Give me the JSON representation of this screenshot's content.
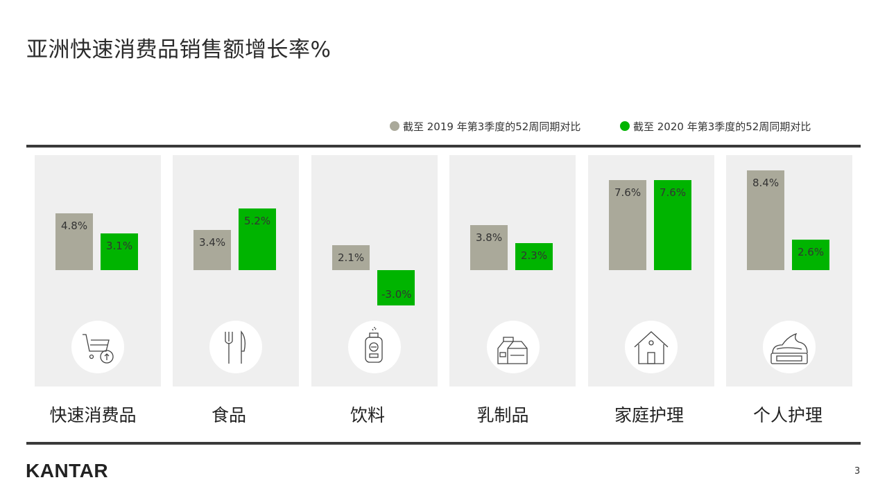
{
  "title": "亚洲快速消费品销售额增长率%",
  "legend": [
    {
      "label": "截至 2019 年第3季度的52周同期对比",
      "color": "#aaa99a"
    },
    {
      "label": "截至 2020 年第3季度的52周同期对比",
      "color": "#00b400"
    }
  ],
  "chart_data": {
    "type": "bar",
    "title": "亚洲快速消费品销售额增长率%",
    "categories": [
      "快速消费品",
      "食品",
      "饮料",
      "乳制品",
      "家庭护理",
      "个人护理"
    ],
    "series": [
      {
        "name": "截至 2019 年第3季度的52周同期对比",
        "values": [
          4.8,
          3.4,
          2.1,
          3.8,
          7.6,
          8.4
        ],
        "labels": [
          "4.8%",
          "3.4%",
          "2.1%",
          "3.8%",
          "7.6%",
          "8.4%"
        ],
        "color": "#aaa99a"
      },
      {
        "name": "截至 2020 年第3季度的52周同期对比",
        "values": [
          3.1,
          5.2,
          -3.0,
          2.3,
          7.6,
          2.6
        ],
        "labels": [
          "3.1%",
          "5.2%",
          "-3.0%",
          "2.3%",
          "7.6%",
          "2.6%"
        ],
        "color": "#00b400"
      }
    ],
    "unit": "%",
    "grid": false,
    "legend_position": "top-right"
  },
  "icons": [
    "cart-icon",
    "cutlery-icon",
    "drink-bottle-icon",
    "milk-carton-icon",
    "house-icon",
    "cream-jar-icon"
  ],
  "logo": "KANTAR",
  "page_number": "3"
}
